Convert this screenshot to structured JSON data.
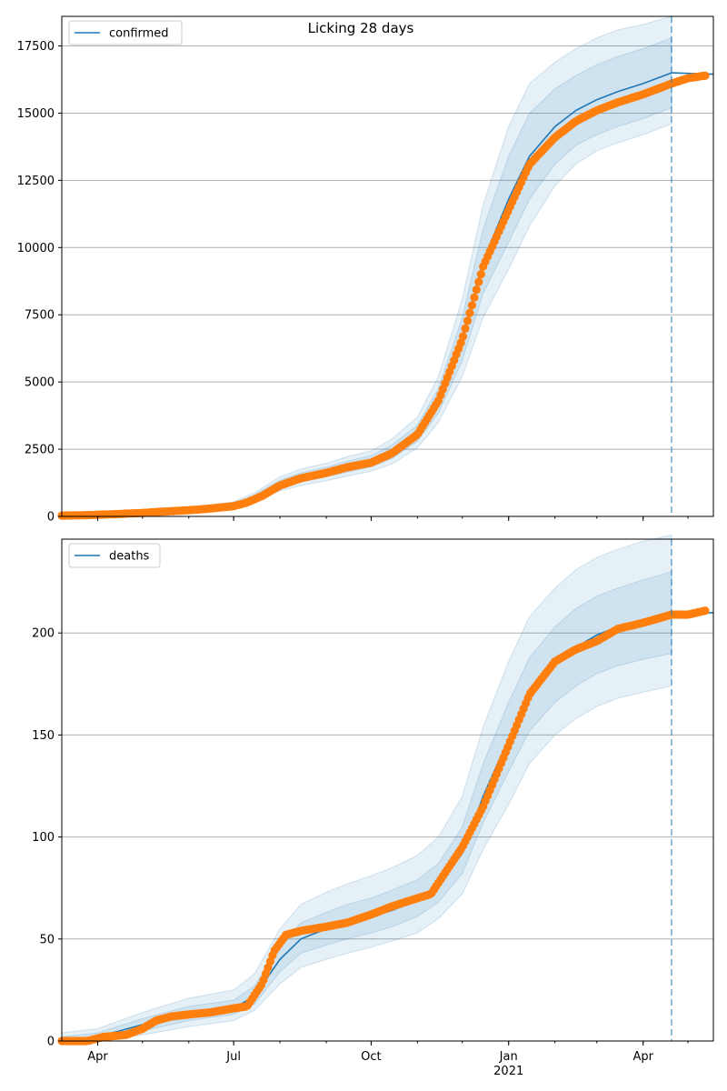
{
  "figure": {
    "title": "Licking 28 days"
  },
  "colors": {
    "model_line": "#1f77b4",
    "observed": "#ff7f0e",
    "band": "#1f77b4",
    "grid": "#b0b0b0",
    "vline": "#1f77b4"
  },
  "chart_data": [
    {
      "type": "line",
      "legend": "confirmed",
      "legend_position": "top-left",
      "grid": "horizontal",
      "xlim": [
        "2020-03-08",
        "2021-05-18"
      ],
      "ylim": [
        0,
        18600
      ],
      "yticks": [
        0,
        2500,
        5000,
        7500,
        10000,
        12500,
        15000,
        17500
      ],
      "ytick_labels": [
        "0",
        "2500",
        "5000",
        "7500",
        "10000",
        "12500",
        "15000",
        "17500"
      ],
      "forecast_date": "2021-04-20",
      "model": {
        "x": [
          "2020-03-08",
          "2020-04-01",
          "2020-05-01",
          "2020-06-01",
          "2020-07-01",
          "2020-07-15",
          "2020-08-01",
          "2020-08-15",
          "2020-09-01",
          "2020-09-15",
          "2020-10-01",
          "2020-10-15",
          "2020-11-01",
          "2020-11-15",
          "2020-12-01",
          "2020-12-15",
          "2021-01-01",
          "2021-01-15",
          "2021-02-01",
          "2021-02-15",
          "2021-03-01",
          "2021-03-15",
          "2021-04-01",
          "2021-04-20"
        ],
        "y": [
          30,
          60,
          130,
          250,
          420,
          700,
          1200,
          1450,
          1650,
          1850,
          2050,
          2400,
          3100,
          4300,
          6600,
          9500,
          11800,
          13400,
          14500,
          15100,
          15500,
          15800,
          16100,
          16500
        ],
        "bands": [
          {
            "lower": [
              20,
              40,
              100,
              200,
              360,
              600,
              1050,
              1280,
              1470,
              1650,
              1840,
              2150,
              2800,
              3850,
              5800,
              8300,
              10200,
              11800,
              13100,
              13800,
              14200,
              14500,
              14800,
              15200
            ],
            "upper": [
              40,
              80,
              160,
              300,
              480,
              800,
              1350,
              1620,
              1830,
              2050,
              2260,
              2650,
              3400,
              4750,
              7400,
              10700,
              13400,
              15000,
              15900,
              16400,
              16800,
              17100,
              17400,
              17800
            ]
          },
          {
            "lower": [
              15,
              30,
              80,
              170,
              320,
              540,
              950,
              1150,
              1330,
              1500,
              1680,
              1950,
              2550,
              3500,
              5200,
              7400,
              9200,
              10800,
              12300,
              13100,
              13600,
              13900,
              14200,
              14600
            ],
            "upper": [
              50,
              100,
              190,
              340,
              540,
              880,
              1470,
              1760,
              1980,
              2220,
              2440,
              2880,
              3700,
              5200,
              8100,
              11600,
              14500,
              16100,
              16900,
              17400,
              17800,
              18100,
              18300,
              18600
            ]
          }
        ],
        "extension_x": [
          "2021-04-20",
          "2021-05-18"
        ],
        "extension_y": [
          16500,
          16450
        ]
      },
      "observed": {
        "x": [
          "2020-03-08",
          "2020-03-20",
          "2020-04-01",
          "2020-04-15",
          "2020-05-01",
          "2020-05-15",
          "2020-06-01",
          "2020-06-15",
          "2020-07-01",
          "2020-07-10",
          "2020-07-20",
          "2020-08-01",
          "2020-08-15",
          "2020-09-01",
          "2020-09-15",
          "2020-10-01",
          "2020-10-15",
          "2020-11-01",
          "2020-11-15",
          "2020-12-01",
          "2020-12-15",
          "2021-01-01",
          "2021-01-15",
          "2021-02-01",
          "2021-02-15",
          "2021-03-01",
          "2021-03-15",
          "2021-04-01",
          "2021-04-20",
          "2021-05-01",
          "2021-05-13"
        ],
        "y": [
          30,
          40,
          60,
          90,
          130,
          180,
          230,
          290,
          380,
          520,
          760,
          1150,
          1420,
          1620,
          1830,
          2000,
          2350,
          3050,
          4300,
          6600,
          9300,
          11400,
          13100,
          14100,
          14700,
          15100,
          15400,
          15700,
          16100,
          16300,
          16400
        ]
      }
    },
    {
      "type": "line",
      "legend": "deaths",
      "legend_position": "top-left",
      "grid": "horizontal",
      "xlim": [
        "2020-03-08",
        "2021-05-18"
      ],
      "ylim": [
        0,
        246
      ],
      "yticks": [
        0,
        50,
        100,
        150,
        200
      ],
      "ytick_labels": [
        "0",
        "50",
        "100",
        "150",
        "200"
      ],
      "xtick_labels": [
        "Apr",
        "Jul",
        "Oct",
        "Jan",
        "Apr"
      ],
      "xtick_dates": [
        "2020-04-01",
        "2020-07-01",
        "2020-10-01",
        "2021-01-01",
        "2021-04-01"
      ],
      "year_label": "2021",
      "forecast_date": "2021-04-20",
      "model": {
        "x": [
          "2020-03-08",
          "2020-04-01",
          "2020-05-01",
          "2020-06-01",
          "2020-07-01",
          "2020-07-15",
          "2020-08-01",
          "2020-08-15",
          "2020-09-01",
          "2020-09-15",
          "2020-10-01",
          "2020-10-15",
          "2020-11-01",
          "2020-11-15",
          "2020-12-01",
          "2020-12-15",
          "2021-01-01",
          "2021-01-15",
          "2021-02-01",
          "2021-02-15",
          "2021-03-01",
          "2021-03-15",
          "2021-04-01",
          "2021-04-20"
        ],
        "y": [
          0,
          2,
          8,
          13,
          16,
          22,
          40,
          50,
          55,
          58,
          61,
          64,
          69,
          76,
          92,
          120,
          148,
          170,
          185,
          193,
          199,
          203,
          206,
          209
        ],
        "bands": [
          {
            "lower": [
              0,
              1,
              5,
              10,
              13,
              18,
              34,
              43,
              47,
              50,
              53,
              56,
              61,
              68,
              82,
              107,
              132,
              152,
              166,
              174,
              180,
              184,
              187,
              190
            ],
            "upper": [
              2,
              4,
              11,
              17,
              20,
              27,
              47,
              58,
              63,
              67,
              70,
              74,
              79,
              87,
              105,
              136,
              166,
              188,
              203,
              212,
              218,
              222,
              226,
              230
            ]
          },
          {
            "lower": [
              0,
              0,
              3,
              7,
              10,
              15,
              28,
              36,
              40,
              43,
              46,
              49,
              53,
              60,
              72,
              94,
              116,
              136,
              150,
              158,
              164,
              168,
              171,
              174
            ],
            "upper": [
              4,
              6,
              14,
              21,
              25,
              33,
              55,
              67,
              73,
              77,
              81,
              85,
              91,
              100,
              120,
              154,
              186,
              208,
              222,
              231,
              237,
              241,
              245,
              248
            ]
          }
        ],
        "extension_x": [
          "2021-04-20",
          "2021-05-18"
        ],
        "extension_y": [
          209,
          210
        ]
      },
      "observed": {
        "x": [
          "2020-03-08",
          "2020-03-25",
          "2020-04-05",
          "2020-04-20",
          "2020-05-01",
          "2020-05-10",
          "2020-05-20",
          "2020-06-01",
          "2020-06-15",
          "2020-07-01",
          "2020-07-10",
          "2020-07-20",
          "2020-07-28",
          "2020-08-05",
          "2020-08-15",
          "2020-09-01",
          "2020-09-15",
          "2020-10-01",
          "2020-10-15",
          "2020-11-01",
          "2020-11-10",
          "2020-11-20",
          "2020-12-01",
          "2020-12-15",
          "2021-01-01",
          "2021-01-15",
          "2021-02-01",
          "2021-02-15",
          "2021-03-01",
          "2021-03-15",
          "2021-04-01",
          "2021-04-20",
          "2021-05-01",
          "2021-05-13"
        ],
        "y": [
          0,
          0,
          2,
          3,
          6,
          10,
          12,
          13,
          14,
          16,
          17,
          28,
          44,
          52,
          54,
          56,
          58,
          62,
          66,
          70,
          72,
          83,
          95,
          115,
          145,
          170,
          186,
          192,
          196,
          202,
          205,
          209,
          209,
          211
        ]
      }
    }
  ]
}
